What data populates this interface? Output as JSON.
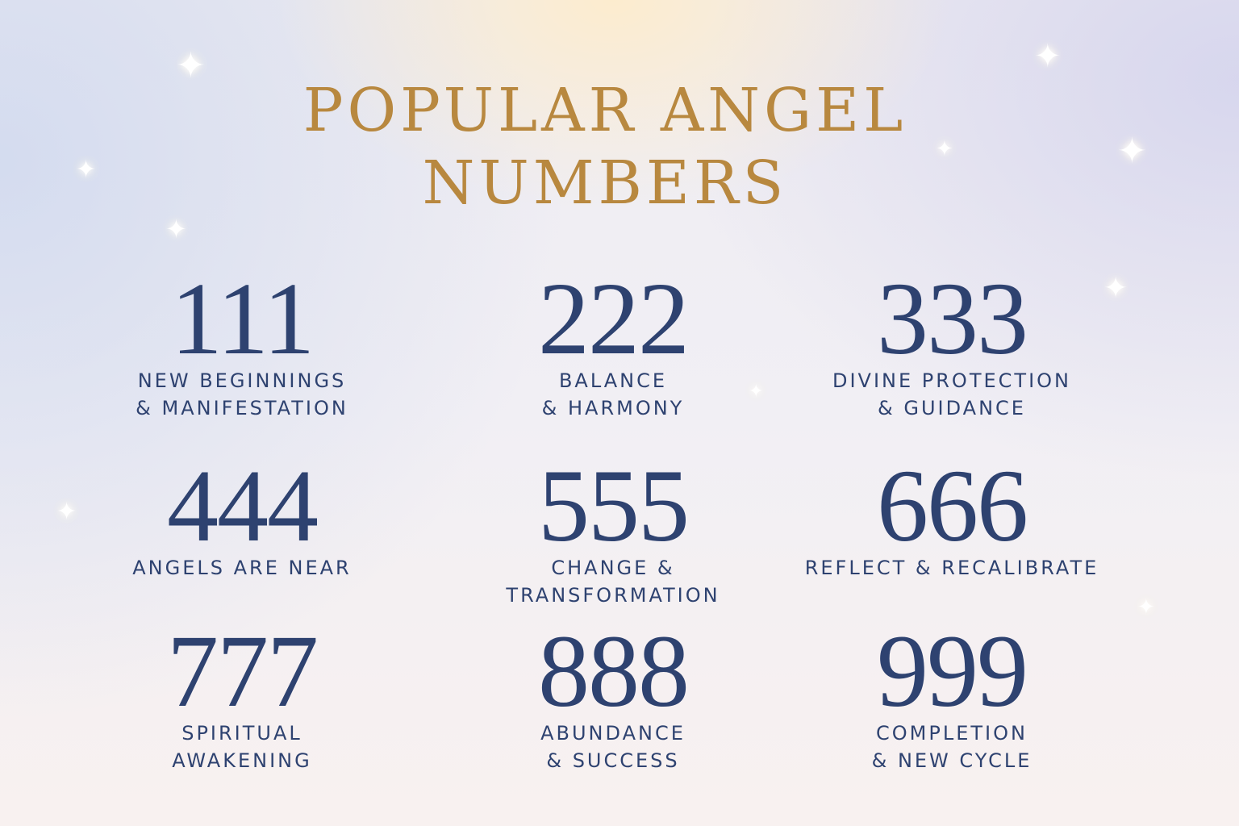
{
  "title": {
    "line1": "POPULAR ANGEL",
    "line2": "NUMBERS"
  },
  "colors": {
    "title": "#b8883f",
    "text": "#2e4270"
  },
  "numbers": [
    {
      "number": "111",
      "meaning": [
        "NEW BEGINNINGS",
        "& MANIFESTATION"
      ]
    },
    {
      "number": "222",
      "meaning": [
        "BALANCE",
        "& HARMONY"
      ]
    },
    {
      "number": "333",
      "meaning": [
        "DIVINE PROTECTION",
        "& GUIDANCE"
      ]
    },
    {
      "number": "444",
      "meaning": [
        "ANGELS ARE NEAR"
      ]
    },
    {
      "number": "555",
      "meaning": [
        "CHANGE &",
        "TRANSFORMATION"
      ]
    },
    {
      "number": "666",
      "meaning": [
        "REFLECT & RECALIBRATE"
      ]
    },
    {
      "number": "777",
      "meaning": [
        "SPIRITUAL",
        "AWAKENING"
      ]
    },
    {
      "number": "888",
      "meaning": [
        "ABUNDANCE",
        "& SUCCESS"
      ]
    },
    {
      "number": "999",
      "meaning": [
        "COMPLETION",
        "& NEW CYCLE"
      ]
    }
  ],
  "decorations": {
    "icon": "sparkle-icon"
  }
}
